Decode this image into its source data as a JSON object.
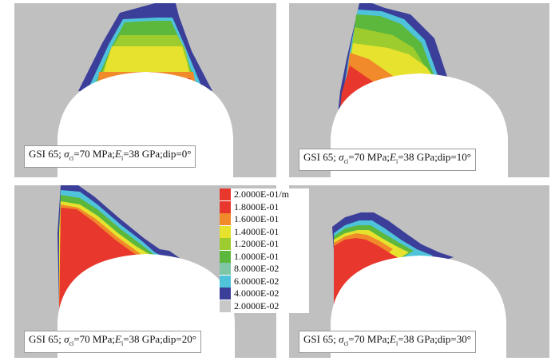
{
  "panels": [
    {
      "id": "p0",
      "caption": {
        "gsi": "GSI 65;",
        "sigma": "σ",
        "sigma_sub": "ci",
        "sigma_val": "=70 MPa;",
        "e": "E",
        "e_sub": "i",
        "e_val": "=38 GPa;dip=0°"
      }
    },
    {
      "id": "p10",
      "caption": {
        "gsi": "GSI 65;",
        "sigma": "σ",
        "sigma_sub": "ci",
        "sigma_val": "=70 MPa;",
        "e": "E",
        "e_sub": "i",
        "e_val": "=38 GPa;dip=10°"
      }
    },
    {
      "id": "p20",
      "caption": {
        "gsi": "GSI 65;",
        "sigma": "σ",
        "sigma_sub": "ci",
        "sigma_val": "=70 MPa;",
        "e": "E",
        "e_sub": "i",
        "e_val": "=38 GPa;dip=20°"
      }
    },
    {
      "id": "p30",
      "caption": {
        "gsi": "GSI 65;",
        "sigma": "σ",
        "sigma_sub": "ci",
        "sigma_val": "=70 MPa;",
        "e": "E",
        "e_sub": "i",
        "e_val": "=38 GPa;dip=30°"
      }
    }
  ],
  "legend": [
    {
      "label": "2.0000E-01/m",
      "color": "#e8372c"
    },
    {
      "label": "1.8000E-01",
      "color": "#e8372c"
    },
    {
      "label": "1.6000E-01",
      "color": "#f08a2a"
    },
    {
      "label": "1.4000E-01",
      "color": "#e6e22e"
    },
    {
      "label": "1.2000E-01",
      "color": "#9ccc2e"
    },
    {
      "label": "1.0000E-01",
      "color": "#5cb83c"
    },
    {
      "label": "8.0000E-02",
      "color": "#7ec6a6"
    },
    {
      "label": "6.0000E-02",
      "color": "#4fc3da"
    },
    {
      "label": "4.0000E-02",
      "color": "#3b3f9a"
    },
    {
      "label": "2.0000E-02",
      "color": "#c8c8c8"
    }
  ],
  "colors": {
    "background": "#c0c0c0",
    "opening": "#ffffff",
    "red": "#e8372c",
    "orange": "#f08a2a",
    "yellow": "#e6e22e",
    "lightgreen": "#9ccc2e",
    "green": "#5cb83c",
    "cyan": "#4fc3da",
    "navy": "#3b3f9a"
  }
}
